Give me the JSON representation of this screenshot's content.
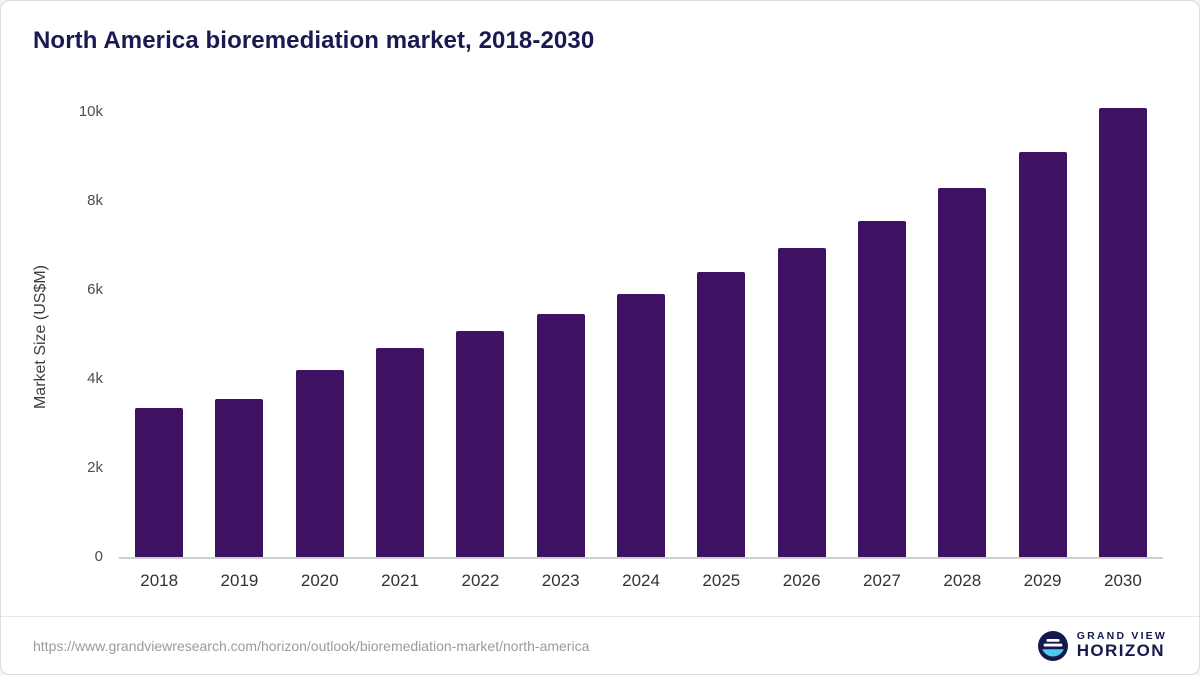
{
  "chart_data": {
    "type": "bar",
    "title": "North America bioremediation market, 2018-2030",
    "xlabel": "",
    "ylabel": "Market Size (US$M)",
    "categories": [
      "2018",
      "2019",
      "2020",
      "2021",
      "2022",
      "2023",
      "2024",
      "2025",
      "2026",
      "2027",
      "2028",
      "2029",
      "2030"
    ],
    "values": [
      3350,
      3550,
      4200,
      4700,
      5080,
      5450,
      5900,
      6400,
      6950,
      7550,
      8300,
      9100,
      10100
    ],
    "ylim": [
      0,
      10000
    ],
    "yticks": {
      "labels": [
        "0",
        "2k",
        "4k",
        "6k",
        "8k",
        "10k"
      ],
      "values": [
        0,
        2000,
        4000,
        6000,
        8000,
        10000
      ]
    },
    "grid": false,
    "legend": false,
    "bar_color": "#3f1163"
  },
  "footer": {
    "source_url": "https://www.grandviewresearch.com/horizon/outlook/bioremediation-market/north-america",
    "brand_top": "GRAND VIEW",
    "brand_bottom": "HORIZON"
  },
  "colors": {
    "title_text": "#1a1a52",
    "axis_text": "#4d4d4d",
    "footer_text": "#9b9b9b",
    "logo_navy": "#151a4d",
    "logo_blue": "#4ec9ef"
  }
}
